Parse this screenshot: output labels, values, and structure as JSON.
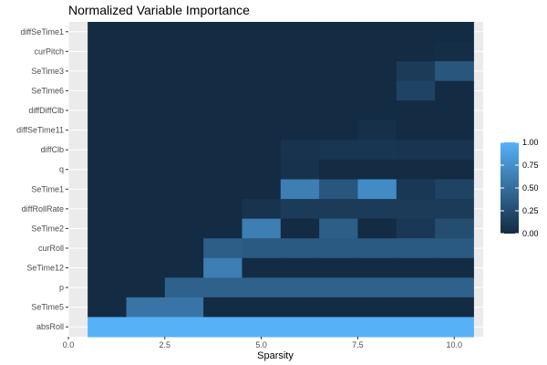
{
  "chart_data": {
    "type": "heatmap",
    "title": "Normalized Variable Importance",
    "xlabel": "Sparsity",
    "ylabel": "",
    "x": [
      1,
      2,
      3,
      4,
      5,
      6,
      7,
      8,
      9,
      10
    ],
    "xlim": [
      0,
      10.75
    ],
    "x_ticks": [
      0.0,
      2.5,
      5.0,
      7.5,
      10.0
    ],
    "x_tick_labels": [
      "0.0",
      "2.5",
      "5.0",
      "7.5",
      "10.0"
    ],
    "y_categories": [
      "diffSeTime1",
      "curPitch",
      "SeTime3",
      "SeTime6",
      "diffDiffClb",
      "diffSeTime11",
      "diffClb",
      "q",
      "SeTime1",
      "diffRollRate",
      "SeTime2",
      "curRoll",
      "SeTime12",
      "p",
      "SeTime5",
      "absRoll"
    ],
    "values": [
      [
        0,
        0,
        0,
        0,
        0,
        0,
        0,
        0,
        0,
        0
      ],
      [
        0,
        0,
        0,
        0,
        0,
        0,
        0,
        0,
        0,
        0.02
      ],
      [
        0,
        0,
        0,
        0,
        0,
        0,
        0,
        0,
        0.12,
        0.32
      ],
      [
        0,
        0,
        0,
        0,
        0,
        0,
        0,
        0,
        0.18,
        0
      ],
      [
        0,
        0,
        0,
        0,
        0,
        0,
        0,
        0,
        0,
        0
      ],
      [
        0,
        0,
        0,
        0,
        0,
        0,
        0,
        0.04,
        0,
        0
      ],
      [
        0,
        0,
        0,
        0,
        0,
        0.06,
        0.08,
        0.08,
        0.07,
        0.07
      ],
      [
        0,
        0,
        0,
        0,
        0,
        0.05,
        0,
        0,
        0,
        0
      ],
      [
        0,
        0,
        0,
        0,
        0,
        0.62,
        0.32,
        0.72,
        0.1,
        0.18
      ],
      [
        0,
        0,
        0,
        0,
        0.06,
        0.12,
        0.12,
        0.12,
        0.12,
        0.12
      ],
      [
        0,
        0,
        0,
        0,
        0.62,
        0,
        0.38,
        0,
        0.1,
        0.25
      ],
      [
        0,
        0,
        0,
        0.38,
        0.35,
        0.35,
        0.35,
        0.35,
        0.35,
        0.35
      ],
      [
        0,
        0,
        0,
        0.62,
        0,
        0,
        0,
        0,
        0,
        0
      ],
      [
        0,
        0,
        0.4,
        0.4,
        0.4,
        0.4,
        0.4,
        0.4,
        0.4,
        0.4
      ],
      [
        0,
        0.55,
        0.55,
        0,
        0,
        0,
        0,
        0,
        0,
        0
      ],
      [
        1,
        1,
        1,
        1,
        1,
        1,
        1,
        1,
        1,
        1
      ]
    ],
    "color_scale": {
      "low": "#132b43",
      "high": "#56b1f7",
      "range": [
        0,
        1
      ]
    },
    "legend": {
      "ticks": [
        1.0,
        0.75,
        0.5,
        0.25,
        0.0
      ],
      "tick_labels": [
        "1.00",
        "0.75",
        "0.50",
        "0.25",
        "0.00"
      ],
      "position": "right"
    },
    "grid": true,
    "panel_background": "#ebebeb"
  }
}
